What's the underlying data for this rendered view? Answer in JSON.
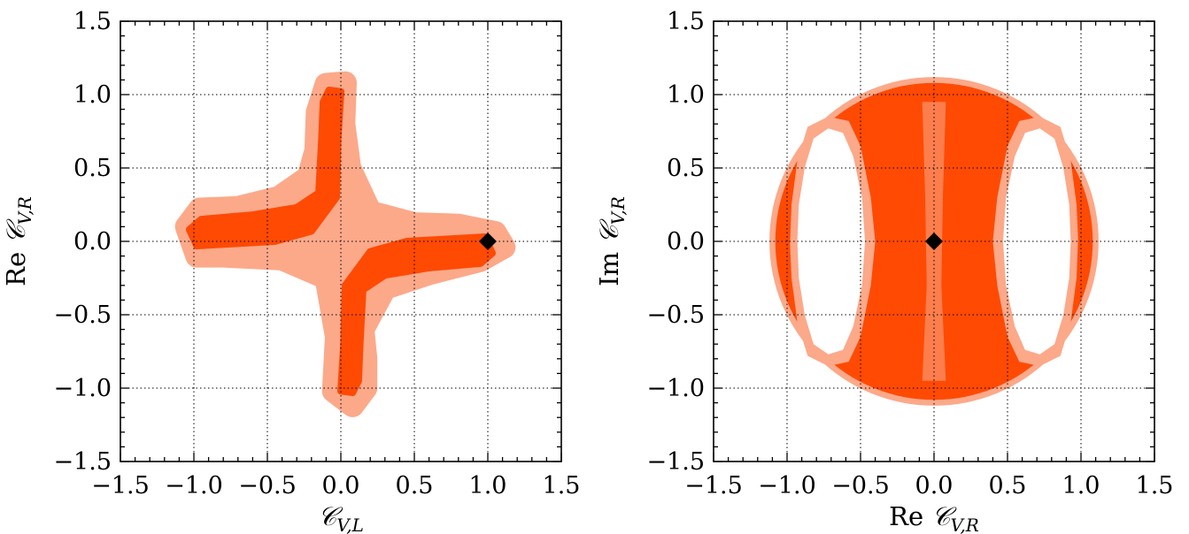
{
  "chart_data": [
    {
      "type": "contour",
      "xlabel": "𝒞V,L",
      "ylabel": "Re 𝒞V,R",
      "xlim": [
        -1.5,
        1.5
      ],
      "ylim": [
        -1.5,
        1.5
      ],
      "ticks": [
        -1.5,
        -1.0,
        -0.5,
        0.0,
        0.5,
        1.0,
        1.5
      ],
      "tick_labels": [
        "−1.5",
        "−1.0",
        "−0.5",
        "0.0",
        "0.5",
        "1.0",
        "1.5"
      ],
      "grid": true,
      "colors": {
        "outer": "#fca98a",
        "inner": "#ff4a04",
        "marker": "#000000"
      },
      "regions": [
        {
          "name": "outer",
          "points": [
            [
              -1.05,
              0.1
            ],
            [
              -0.96,
              0.22
            ],
            [
              -0.7,
              0.23
            ],
            [
              -0.42,
              0.3
            ],
            [
              -0.22,
              0.44
            ],
            [
              -0.17,
              0.62
            ],
            [
              -0.16,
              0.88
            ],
            [
              -0.1,
              1.07
            ],
            [
              0.03,
              1.08
            ],
            [
              0.02,
              0.8
            ],
            [
              0.06,
              0.5
            ],
            [
              0.2,
              0.2
            ],
            [
              0.5,
              0.12
            ],
            [
              0.8,
              0.11
            ],
            [
              1.05,
              0.06
            ],
            [
              1.11,
              -0.04
            ],
            [
              0.95,
              -0.13
            ],
            [
              0.6,
              -0.22
            ],
            [
              0.3,
              -0.32
            ],
            [
              0.15,
              -0.6
            ],
            [
              0.17,
              -0.8
            ],
            [
              0.17,
              -1.0
            ],
            [
              0.08,
              -1.12
            ],
            [
              -0.05,
              -1.02
            ],
            [
              -0.03,
              -0.65
            ],
            [
              -0.1,
              -0.25
            ],
            [
              -0.4,
              -0.12
            ],
            [
              -0.8,
              -0.1
            ],
            [
              -0.98,
              -0.1
            ]
          ]
        },
        {
          "name": "inner",
          "points": [
            [
              -1.03,
              0.08
            ],
            [
              -0.95,
              0.15
            ],
            [
              -0.6,
              0.18
            ],
            [
              -0.3,
              0.23
            ],
            [
              -0.15,
              0.33
            ],
            [
              -0.13,
              0.7
            ],
            [
              -0.12,
              0.95
            ],
            [
              -0.08,
              1.03
            ],
            [
              0.0,
              1.02
            ],
            [
              -0.02,
              0.7
            ],
            [
              -0.03,
              0.3
            ],
            [
              -0.2,
              0.07
            ],
            [
              -0.45,
              0.0
            ],
            [
              -0.8,
              -0.02
            ],
            [
              -0.98,
              -0.03
            ]
          ]
        },
        {
          "name": "inner",
          "points": [
            [
              1.03,
              -0.08
            ],
            [
              0.95,
              -0.15
            ],
            [
              0.6,
              -0.18
            ],
            [
              0.3,
              -0.23
            ],
            [
              0.15,
              -0.33
            ],
            [
              0.13,
              -0.7
            ],
            [
              0.12,
              -0.95
            ],
            [
              0.08,
              -1.03
            ],
            [
              0.0,
              -1.02
            ],
            [
              0.02,
              -0.7
            ],
            [
              0.03,
              -0.3
            ],
            [
              0.2,
              -0.07
            ],
            [
              0.45,
              0.0
            ],
            [
              0.8,
              0.02
            ],
            [
              0.98,
              0.03
            ]
          ]
        }
      ],
      "markers": [
        {
          "x": 1.0,
          "y": 0.0,
          "shape": "diamond"
        }
      ]
    },
    {
      "type": "contour",
      "xlabel": "Re 𝒞V,R",
      "ylabel": "Im 𝒞V,R",
      "xlim": [
        -1.5,
        1.5
      ],
      "ylim": [
        -1.5,
        1.5
      ],
      "ticks": [
        -1.5,
        -1.0,
        -0.5,
        0.0,
        0.5,
        1.0,
        1.5
      ],
      "tick_labels": [
        "−1.5",
        "−1.0",
        "−0.5",
        "0.0",
        "0.5",
        "1.0",
        "1.5"
      ],
      "grid": true,
      "colors": {
        "outer": "#fca98a",
        "inner": "#ff4a04",
        "marker": "#000000"
      },
      "circles": [
        {
          "name": "outer",
          "cx": 1.0,
          "cy": 0.0,
          "r": 2.12,
          "clip": "disk",
          "disk": {
            "cx": 0.0,
            "cy": 0.0,
            "r": 1.12
          }
        },
        {
          "name": "inner",
          "cx": 0.0,
          "cy": 0.0,
          "r": 1.08
        }
      ],
      "holes": [
        {
          "name": "outer",
          "points": [
            [
              -0.98,
              -0.02
            ],
            [
              -0.97,
              0.25
            ],
            [
              -0.93,
              0.55
            ],
            [
              -0.86,
              0.78
            ],
            [
              -0.72,
              0.85
            ],
            [
              -0.58,
              0.82
            ],
            [
              -0.5,
              0.65
            ],
            [
              -0.43,
              0.3
            ],
            [
              -0.4,
              0.0
            ],
            [
              -0.43,
              -0.3
            ],
            [
              -0.5,
              -0.65
            ],
            [
              -0.58,
              -0.82
            ],
            [
              -0.72,
              -0.85
            ],
            [
              -0.86,
              -0.78
            ],
            [
              -0.93,
              -0.55
            ],
            [
              -0.97,
              -0.25
            ]
          ]
        },
        {
          "name": "outer",
          "points": [
            [
              0.98,
              0.02
            ],
            [
              0.97,
              0.25
            ],
            [
              0.93,
              0.55
            ],
            [
              0.86,
              0.78
            ],
            [
              0.72,
              0.85
            ],
            [
              0.58,
              0.82
            ],
            [
              0.5,
              0.65
            ],
            [
              0.43,
              0.3
            ],
            [
              0.4,
              0.0
            ],
            [
              0.43,
              -0.3
            ],
            [
              0.5,
              -0.65
            ],
            [
              0.58,
              -0.82
            ],
            [
              0.72,
              -0.85
            ],
            [
              0.86,
              -0.78
            ],
            [
              0.93,
              -0.55
            ],
            [
              0.97,
              -0.25
            ]
          ]
        },
        {
          "name": "white",
          "points": [
            [
              -0.93,
              0.0
            ],
            [
              -0.92,
              0.25
            ],
            [
              -0.88,
              0.5
            ],
            [
              -0.82,
              0.7
            ],
            [
              -0.72,
              0.77
            ],
            [
              -0.62,
              0.74
            ],
            [
              -0.55,
              0.58
            ],
            [
              -0.49,
              0.3
            ],
            [
              -0.47,
              0.0
            ],
            [
              -0.49,
              -0.3
            ],
            [
              -0.55,
              -0.58
            ],
            [
              -0.62,
              -0.74
            ],
            [
              -0.72,
              -0.77
            ],
            [
              -0.82,
              -0.7
            ],
            [
              -0.88,
              -0.5
            ],
            [
              -0.92,
              -0.25
            ]
          ]
        },
        {
          "name": "white",
          "points": [
            [
              0.93,
              0.0
            ],
            [
              0.92,
              0.25
            ],
            [
              0.88,
              0.5
            ],
            [
              0.82,
              0.7
            ],
            [
              0.72,
              0.77
            ],
            [
              0.62,
              0.74
            ],
            [
              0.55,
              0.58
            ],
            [
              0.49,
              0.3
            ],
            [
              0.47,
              0.0
            ],
            [
              0.49,
              -0.3
            ],
            [
              0.55,
              -0.58
            ],
            [
              0.62,
              -0.74
            ],
            [
              0.72,
              -0.77
            ],
            [
              0.82,
              -0.7
            ],
            [
              0.88,
              -0.5
            ],
            [
              0.92,
              -0.25
            ]
          ]
        }
      ],
      "bands": [
        {
          "name": "outer",
          "points": [
            [
              -0.08,
              0.95
            ],
            [
              0.08,
              0.95
            ],
            [
              0.06,
              0.3
            ],
            [
              0.05,
              -0.3
            ],
            [
              0.08,
              -0.95
            ],
            [
              -0.08,
              -0.95
            ],
            [
              -0.05,
              -0.3
            ],
            [
              -0.06,
              0.3
            ]
          ]
        }
      ],
      "markers": [
        {
          "x": 0.0,
          "y": 0.0,
          "shape": "diamond"
        }
      ]
    }
  ]
}
